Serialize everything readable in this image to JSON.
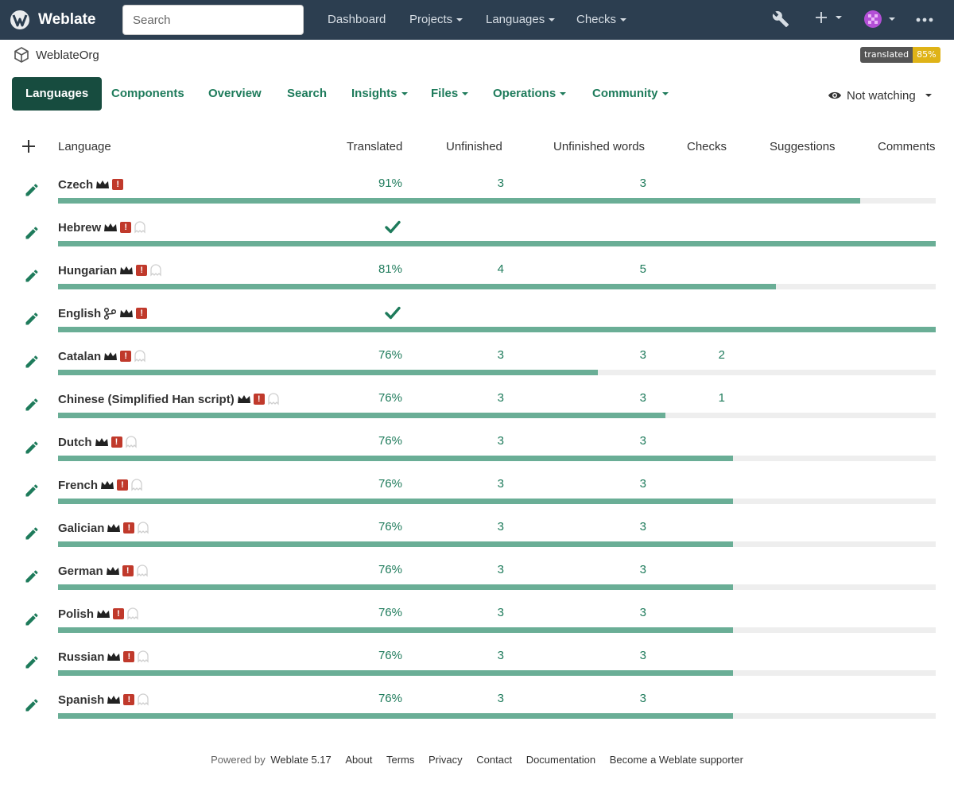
{
  "navbar": {
    "brand": "Weblate",
    "search_placeholder": "Search",
    "links": [
      "Dashboard",
      "Projects",
      "Languages",
      "Checks"
    ]
  },
  "breadcrumb": {
    "project": "WeblateOrg"
  },
  "badge": {
    "label": "translated",
    "value": "85%",
    "color": "#dfb317"
  },
  "tabs": [
    "Languages",
    "Components",
    "Overview",
    "Search",
    "Insights",
    "Files",
    "Operations",
    "Community"
  ],
  "watch": {
    "label": "Not watching"
  },
  "table": {
    "headers": [
      "Language",
      "Translated",
      "Unfinished",
      "Unfinished words",
      "Checks",
      "Suggestions",
      "Comments"
    ],
    "rows": [
      {
        "language": "Czech",
        "translated": "91%",
        "percent": 91.4,
        "unfinished": "3",
        "unfinished_words": "3",
        "checks": "",
        "source": false,
        "ghost": false
      },
      {
        "language": "Hebrew",
        "translated": "",
        "percent": 100,
        "complete": true,
        "unfinished": "",
        "unfinished_words": "",
        "checks": "",
        "source": false,
        "ghost": true
      },
      {
        "language": "Hungarian",
        "translated": "81%",
        "percent": 81.8,
        "unfinished": "4",
        "unfinished_words": "5",
        "checks": "",
        "source": false,
        "ghost": true
      },
      {
        "language": "English",
        "translated": "",
        "percent": 100,
        "complete": true,
        "unfinished": "",
        "unfinished_words": "",
        "checks": "",
        "source": true,
        "ghost": false
      },
      {
        "language": "Catalan",
        "translated": "76%",
        "percent": 61.5,
        "unfinished": "3",
        "unfinished_words": "3",
        "checks": "2",
        "source": false,
        "ghost": true
      },
      {
        "language": "Chinese (Simplified Han script)",
        "translated": "76%",
        "percent": 69.2,
        "unfinished": "3",
        "unfinished_words": "3",
        "checks": "1",
        "source": false,
        "ghost": true
      },
      {
        "language": "Dutch",
        "translated": "76%",
        "percent": 76.9,
        "unfinished": "3",
        "unfinished_words": "3",
        "checks": "",
        "source": false,
        "ghost": true
      },
      {
        "language": "French",
        "translated": "76%",
        "percent": 76.9,
        "unfinished": "3",
        "unfinished_words": "3",
        "checks": "",
        "source": false,
        "ghost": true
      },
      {
        "language": "Galician",
        "translated": "76%",
        "percent": 76.9,
        "unfinished": "3",
        "unfinished_words": "3",
        "checks": "",
        "source": false,
        "ghost": true
      },
      {
        "language": "German",
        "translated": "76%",
        "percent": 76.9,
        "unfinished": "3",
        "unfinished_words": "3",
        "checks": "",
        "source": false,
        "ghost": true
      },
      {
        "language": "Polish",
        "translated": "76%",
        "percent": 76.9,
        "unfinished": "3",
        "unfinished_words": "3",
        "checks": "",
        "source": false,
        "ghost": true
      },
      {
        "language": "Russian",
        "translated": "76%",
        "percent": 76.9,
        "unfinished": "3",
        "unfinished_words": "3",
        "checks": "",
        "source": false,
        "ghost": true
      },
      {
        "language": "Spanish",
        "translated": "76%",
        "percent": 76.9,
        "unfinished": "3",
        "unfinished_words": "3",
        "checks": "",
        "source": false,
        "ghost": true
      }
    ]
  },
  "footer": {
    "powered_by": "Powered by",
    "links": [
      "Weblate 5.17",
      "About",
      "Terms",
      "Privacy",
      "Contact",
      "Documentation",
      "Become a Weblate supporter"
    ]
  },
  "colors": {
    "navbar": "#2c3e50",
    "accent": "#1e7b5b",
    "tab_active": "#174c3f",
    "progress": "#6aae96",
    "alert": "#c0392b"
  }
}
